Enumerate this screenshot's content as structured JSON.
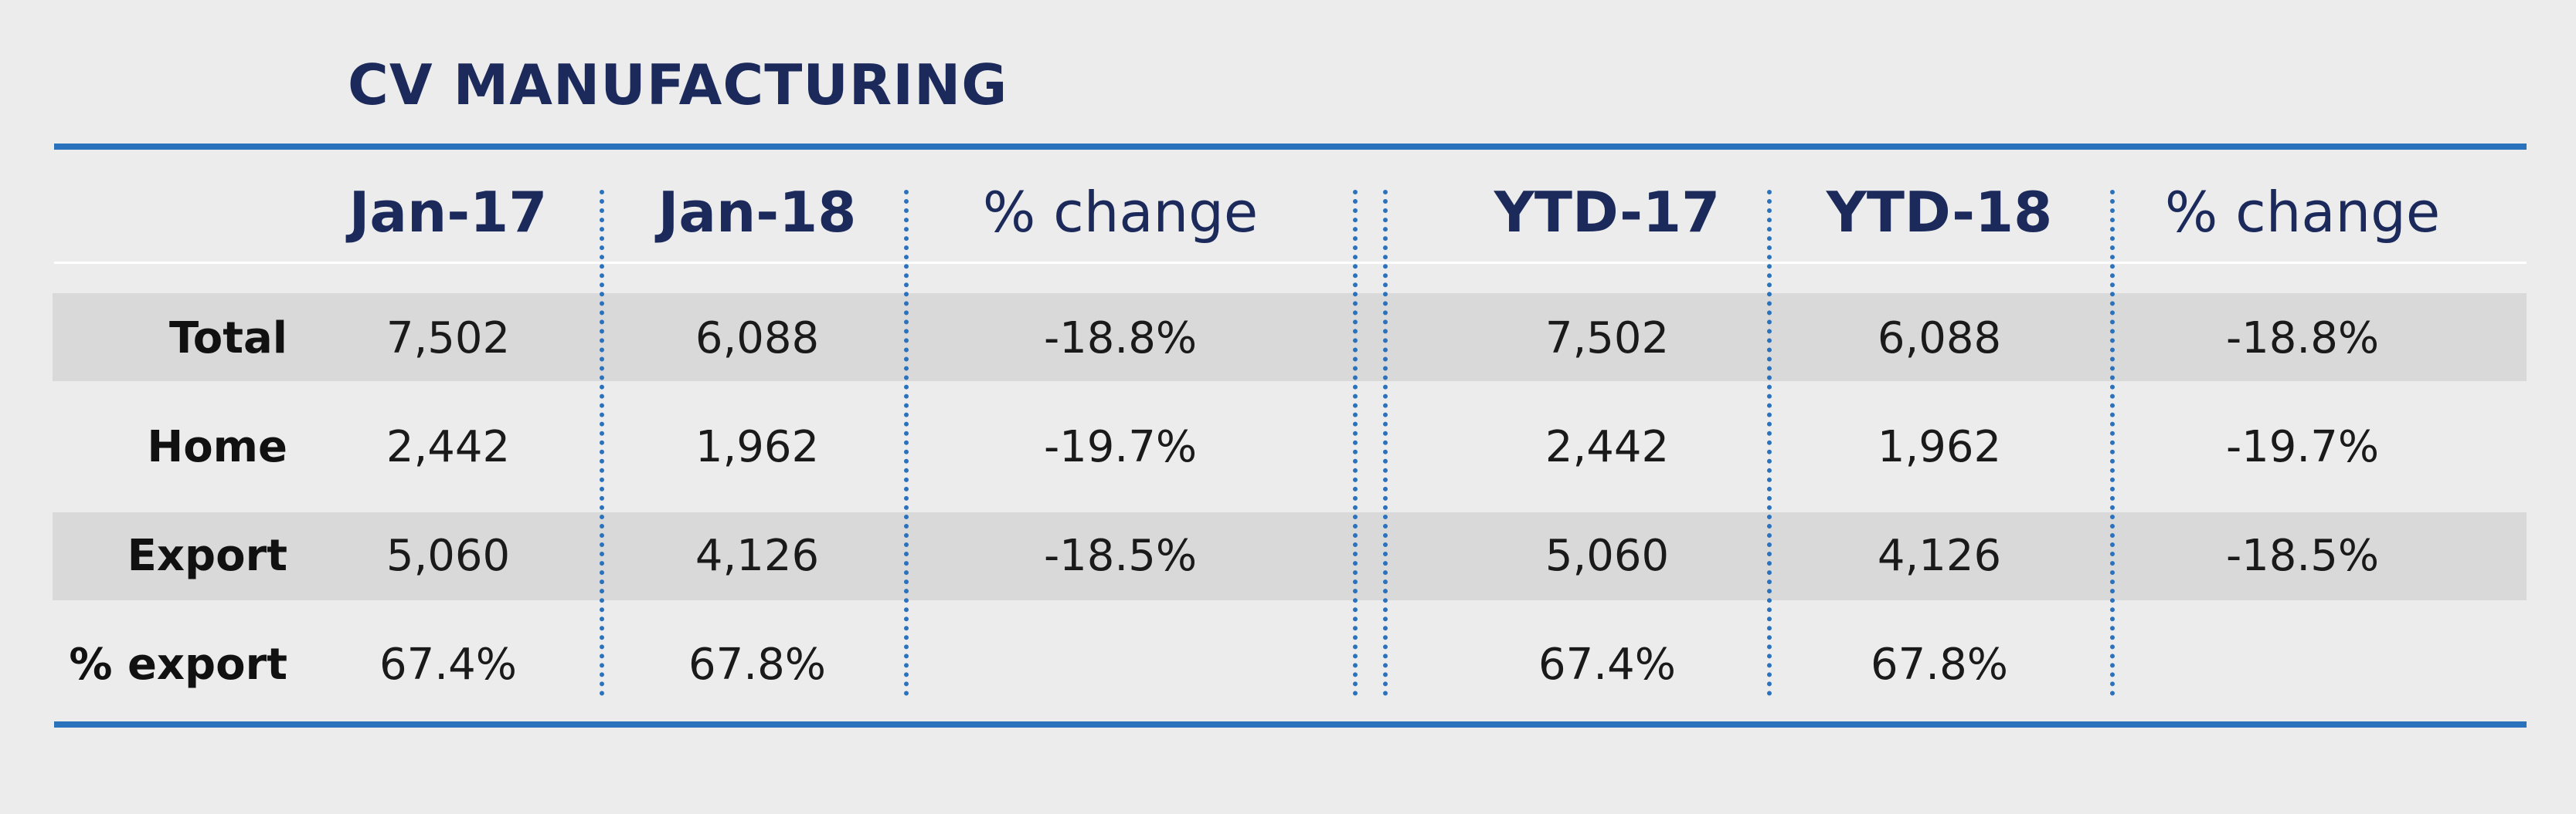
{
  "title": "CV MANUFACTURING",
  "colors": {
    "background": "#ececec",
    "accent": "#2b72bd",
    "title": "#1b2a5b",
    "band": "#d9d9d9"
  },
  "columns": [
    "Jan-17",
    "Jan-18",
    "% change",
    "YTD-17",
    "YTD-18",
    "% change"
  ],
  "rows": [
    {
      "label": "Total",
      "values": [
        "7,502",
        "6,088",
        "-18.8%",
        "7,502",
        "6,088",
        "-18.8%"
      ]
    },
    {
      "label": "Home",
      "values": [
        "2,442",
        "1,962",
        "-19.7%",
        "2,442",
        "1,962",
        "-19.7%"
      ]
    },
    {
      "label": "Export",
      "values": [
        "5,060",
        "4,126",
        "-18.5%",
        "5,060",
        "4,126",
        "-18.5%"
      ]
    },
    {
      "label": "% export",
      "values": [
        "67.4%",
        "67.8%",
        "",
        "67.4%",
        "67.8%",
        ""
      ]
    }
  ]
}
